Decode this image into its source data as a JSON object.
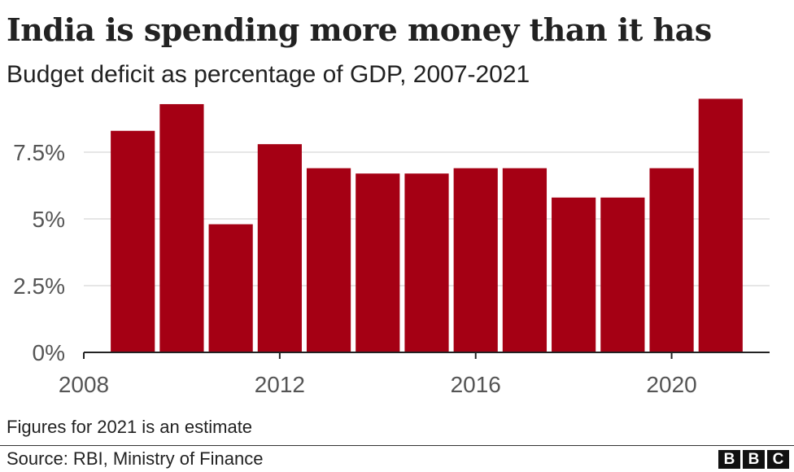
{
  "header": {
    "title": "India is spending more money than it has",
    "subtitle": "Budget deficit as percentage of GDP, 2007-2021"
  },
  "footer": {
    "note": "Figures for 2021 is an estimate",
    "source": "Source: RBI, Ministry of Finance",
    "logo_letters": [
      "B",
      "B",
      "C"
    ]
  },
  "colors": {
    "bar": "#a50014",
    "grid": "#cccccc",
    "axis": "#222222"
  },
  "chart_data": {
    "type": "bar",
    "title": "India is spending more money than it has",
    "subtitle": "Budget deficit as percentage of GDP, 2007-2021",
    "xlabel": "",
    "ylabel": "",
    "x": [
      2009,
      2010,
      2011,
      2012,
      2013,
      2014,
      2015,
      2016,
      2017,
      2018,
      2019,
      2020,
      2021
    ],
    "values": [
      8.3,
      9.3,
      4.8,
      7.8,
      6.9,
      6.7,
      6.7,
      6.9,
      6.9,
      5.8,
      5.8,
      6.9,
      9.5
    ],
    "xlim": [
      2008,
      2022
    ],
    "ylim": [
      0,
      10
    ],
    "x_ticks": [
      2008,
      2012,
      2016,
      2020
    ],
    "x_tick_labels": [
      "2008",
      "2012",
      "2016",
      "2020"
    ],
    "y_ticks": [
      0,
      2.5,
      5,
      7.5
    ],
    "y_tick_labels": [
      "0%",
      "2.5%",
      "5%",
      "7.5%"
    ],
    "grid": "horizontal",
    "legend": "none"
  }
}
